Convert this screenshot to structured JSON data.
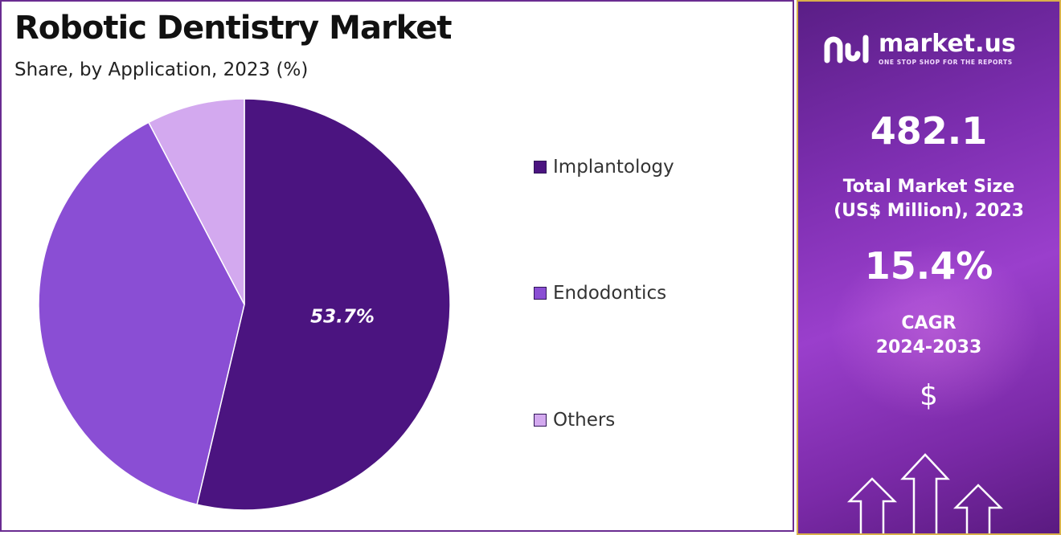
{
  "chart_data": {
    "type": "pie",
    "title": "Robotic Dentistry Market",
    "subtitle": "Share, by Application, 2023 (%)",
    "categories": [
      "Implantology",
      "Endodontics",
      "Others"
    ],
    "values": [
      53.7,
      38.6,
      7.7
    ],
    "colors": [
      "#4b1480",
      "#8a4ed4",
      "#d3a9ef"
    ],
    "data_labels": [
      "53.7%",
      "",
      ""
    ],
    "legend_position": "right"
  },
  "side_panel": {
    "brand_name": "market.us",
    "brand_tagline": "ONE STOP SHOP FOR THE REPORTS",
    "market_size_value": "482.1",
    "market_size_caption_line1": "Total Market Size",
    "market_size_caption_line2": "(US$ Million), 2023",
    "cagr_value": "15.4%",
    "cagr_label": "CAGR",
    "cagr_period": "2024-2033",
    "dollar_symbol": "$",
    "background_colors": [
      "#5a1e86",
      "#9a3fcc"
    ]
  }
}
